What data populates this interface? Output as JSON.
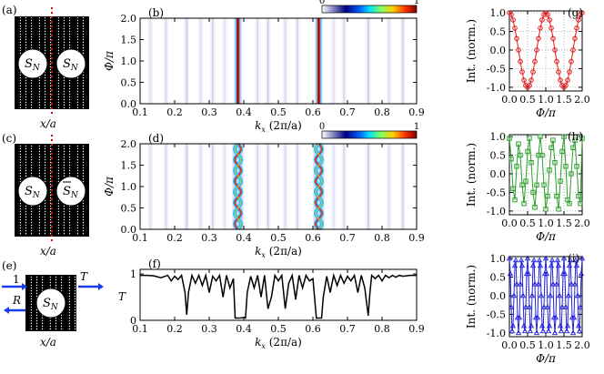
{
  "colors": {
    "red": "#e01b1b",
    "green": "#2ca02c",
    "blue": "#2222dd",
    "marker": "#1a3cf0",
    "lattice_dot": "#cc1111"
  },
  "schematic": {
    "a": {
      "label": "(a)",
      "xlabel": "x/a",
      "left": "S_N",
      "right": "S_N",
      "right_bar": false
    },
    "c": {
      "label": "(c)",
      "xlabel": "x/a",
      "left": "S_N",
      "right": "S_N",
      "right_bar": true
    },
    "e": {
      "label": "(e)",
      "xlabel": "x/a",
      "center": "S_N",
      "in_label": "1",
      "refl_label": "R",
      "trans_label": "T"
    }
  },
  "chart_data": [
    {
      "id": "b",
      "type": "heatmap",
      "label": "(b)",
      "xlabel": "k_x (2π/a)",
      "ylabel": "Φ/π",
      "xlim": [
        0.1,
        0.9
      ],
      "ylim": [
        0,
        2
      ],
      "xticks": [
        0.1,
        0.2,
        0.3,
        0.4,
        0.5,
        0.6,
        0.7,
        0.8,
        0.9
      ],
      "yticks": [
        0,
        0.5,
        1.0,
        1.5,
        2.0
      ],
      "colorbar": {
        "min": "0",
        "max": "1"
      },
      "ridges": [
        0.383,
        0.617
      ],
      "faint_lines": [
        0.13,
        0.175,
        0.235,
        0.275,
        0.31,
        0.345,
        0.44,
        0.47,
        0.52,
        0.555,
        0.66,
        0.69,
        0.76,
        0.82,
        0.86
      ]
    },
    {
      "id": "d",
      "type": "heatmap",
      "label": "(d)",
      "xlabel": "k_x (2π/a)",
      "ylabel": "Φ/π",
      "xlim": [
        0.1,
        0.9
      ],
      "ylim": [
        0,
        2
      ],
      "xticks": [
        0.1,
        0.2,
        0.3,
        0.4,
        0.5,
        0.6,
        0.7,
        0.8,
        0.9
      ],
      "yticks": [
        0,
        0.5,
        1.0,
        1.5,
        2.0
      ],
      "colorbar": {
        "min": "0",
        "max": "1"
      },
      "ridges": [
        0.383,
        0.617
      ],
      "faint_lines": [
        0.13,
        0.175,
        0.235,
        0.275,
        0.31,
        0.345,
        0.44,
        0.47,
        0.52,
        0.555,
        0.66,
        0.69,
        0.76,
        0.82,
        0.86
      ]
    },
    {
      "id": "f",
      "type": "line",
      "label": "(f)",
      "xlabel": "k_x (2π/a)",
      "ylabel": "T",
      "xlim": [
        0.1,
        0.9
      ],
      "ylim": [
        0,
        1.1
      ],
      "xticks": [
        0.1,
        0.2,
        0.3,
        0.4,
        0.5,
        0.6,
        0.7,
        0.8,
        0.9
      ],
      "yticks": [
        0,
        1
      ],
      "x": [
        0.1,
        0.12,
        0.14,
        0.16,
        0.18,
        0.19,
        0.2,
        0.21,
        0.22,
        0.23,
        0.235,
        0.24,
        0.25,
        0.26,
        0.27,
        0.28,
        0.29,
        0.3,
        0.31,
        0.32,
        0.33,
        0.34,
        0.35,
        0.36,
        0.37,
        0.375,
        0.38,
        0.39,
        0.4,
        0.405,
        0.41,
        0.42,
        0.43,
        0.44,
        0.45,
        0.46,
        0.47,
        0.48,
        0.49,
        0.5,
        0.51,
        0.52,
        0.53,
        0.54,
        0.55,
        0.56,
        0.57,
        0.58,
        0.59,
        0.6,
        0.61,
        0.62,
        0.625,
        0.63,
        0.64,
        0.65,
        0.66,
        0.67,
        0.68,
        0.69,
        0.7,
        0.71,
        0.72,
        0.73,
        0.74,
        0.75,
        0.76,
        0.765,
        0.77,
        0.78,
        0.79,
        0.8,
        0.81,
        0.82,
        0.83,
        0.84,
        0.85,
        0.86,
        0.88,
        0.9
      ],
      "y": [
        0.97,
        0.97,
        0.96,
        0.92,
        0.97,
        0.85,
        0.95,
        0.88,
        0.97,
        0.6,
        0.12,
        0.6,
        0.97,
        0.8,
        0.97,
        0.75,
        0.97,
        0.6,
        0.95,
        0.85,
        0.97,
        0.5,
        0.97,
        0.7,
        0.9,
        0.05,
        0.05,
        0.05,
        0.06,
        0.05,
        0.6,
        0.95,
        0.7,
        0.97,
        0.5,
        0.97,
        0.25,
        0.5,
        0.97,
        0.85,
        0.97,
        0.25,
        0.8,
        0.97,
        0.45,
        0.97,
        0.7,
        0.97,
        0.85,
        0.9,
        0.05,
        0.05,
        0.05,
        0.5,
        0.95,
        0.6,
        0.97,
        0.75,
        0.97,
        0.8,
        0.95,
        0.85,
        0.97,
        0.6,
        0.97,
        0.7,
        0.1,
        0.6,
        0.97,
        0.9,
        0.97,
        0.85,
        0.97,
        0.92,
        0.97,
        0.93,
        0.97,
        0.95,
        0.97,
        0.97
      ]
    },
    {
      "id": "g",
      "type": "line",
      "label": "(g)",
      "xlabel": "Φ/π",
      "ylabel": "Int. (norm.)",
      "xlim": [
        0,
        2
      ],
      "ylim": [
        -1.1,
        1.05
      ],
      "xticks": [
        0.0,
        0.5,
        1.0,
        1.5,
        2.0
      ],
      "yticks": [
        -1.0,
        -0.5,
        0.0,
        0.5,
        1.0
      ],
      "marker": "circle",
      "color": "red",
      "series_formula": "cos(2πΦ)",
      "n_points": 41
    },
    {
      "id": "h",
      "type": "line",
      "label": "(h)",
      "xlabel": "Φ/π",
      "ylabel": "Int. (norm.)",
      "xlim": [
        0,
        2
      ],
      "ylim": [
        -1.1,
        1.05
      ],
      "xticks": [
        0.0,
        0.5,
        1.0,
        1.5,
        2.0
      ],
      "yticks": [
        -1.0,
        -0.5,
        0.0,
        0.5,
        1.0
      ],
      "marker": "square",
      "color": "green",
      "x": [
        0,
        0.05,
        0.1,
        0.15,
        0.2,
        0.25,
        0.3,
        0.35,
        0.4,
        0.45,
        0.5,
        0.55,
        0.6,
        0.65,
        0.7,
        0.75,
        0.8,
        0.85,
        0.9,
        0.95,
        1.0,
        1.05,
        1.1,
        1.15,
        1.2,
        1.25,
        1.3,
        1.35,
        1.4,
        1.45,
        1.5,
        1.55,
        1.6,
        1.65,
        1.7,
        1.75,
        1.8,
        1.85,
        1.9,
        1.95,
        2.0
      ],
      "y": [
        0.95,
        0.4,
        -0.4,
        -0.7,
        0.2,
        0.8,
        0.5,
        -0.3,
        -0.8,
        -0.2,
        0.6,
        0.95,
        0.3,
        -0.5,
        -0.9,
        -0.3,
        0.5,
        1.0,
        0.5,
        -0.3,
        -0.95,
        -0.6,
        0.1,
        0.7,
        0.9,
        0.3,
        -0.6,
        -0.95,
        -0.2,
        0.6,
        1.0,
        0.2,
        -0.7,
        -0.8,
        0.0,
        0.7,
        0.9,
        0.2,
        -0.6,
        -0.8,
        0.95
      ]
    },
    {
      "id": "i",
      "type": "line",
      "label": "(i)",
      "xlabel": "Φ/π",
      "ylabel": "Int. (norm.)",
      "xlim": [
        0,
        2
      ],
      "ylim": [
        -1.1,
        1.05
      ],
      "xticks": [
        0.0,
        0.5,
        1.0,
        1.5,
        2.0
      ],
      "yticks": [
        -1.0,
        -0.5,
        0.0,
        0.5,
        1.0
      ],
      "marker": "triangle",
      "color": "blue",
      "series_formula": "cos(12πΦ)",
      "n_points": 81
    }
  ]
}
